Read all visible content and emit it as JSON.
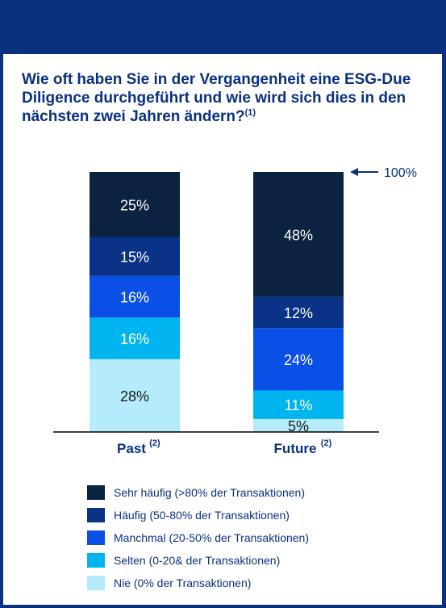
{
  "title": "Wie oft haben Sie in der Vergangenheit eine ESG-Due Diligence durchgeführt und wie wird sich dies in den nächsten zwei Jahren ändern?",
  "title_footnote": "(1)",
  "chart_data": {
    "type": "bar",
    "stacked": true,
    "categories": [
      "Past",
      "Future"
    ],
    "category_footnotes": [
      "(2)",
      "(2)"
    ],
    "series": [
      {
        "name": "Nie (0% der Transaktionen)",
        "color": "#b5ecfb",
        "values": [
          28,
          5
        ]
      },
      {
        "name": "Selten (0-20& der Transaktionen)",
        "color": "#00b4ef",
        "values": [
          16,
          11
        ]
      },
      {
        "name": "Manchmal (20-50% der Transaktionen)",
        "color": "#0a4fe6",
        "values": [
          16,
          24
        ]
      },
      {
        "name": "Häufig (50-80% der Transaktionen)",
        "color": "#0a3287",
        "values": [
          15,
          12
        ]
      },
      {
        "name": "Sehr häufig (>80% der Transaktionen)",
        "color": "#0b2240",
        "values": [
          25,
          48
        ]
      }
    ],
    "ylim": [
      0,
      100
    ],
    "total_annotation": "100%",
    "legend_position": "bottom",
    "grid": false
  }
}
